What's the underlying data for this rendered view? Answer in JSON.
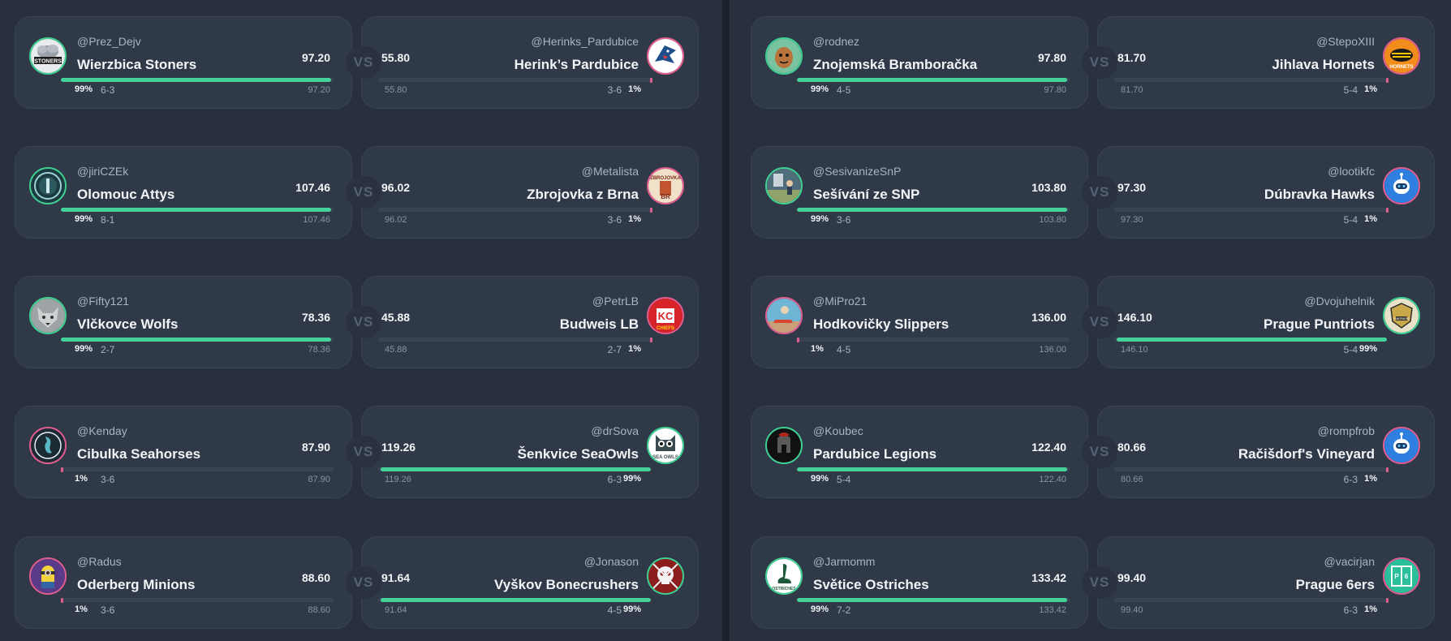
{
  "columns": [
    {
      "matchups": [
        {
          "home": {
            "handle": "@Prez_Dejv",
            "team": "Wierzbica Stoners",
            "score": "97.20",
            "pct": "99%",
            "record": "6-3",
            "mini": "97.20",
            "fill": 0.99,
            "winner": true,
            "avatar_icon": "stoners-logo-icon",
            "ring": "#3fd193"
          },
          "away": {
            "handle": "@Herinks_Pardubice",
            "team": "Herink’s Pardubice",
            "score": "55.80",
            "pct": "1%",
            "record": "3-6",
            "mini": "55.80",
            "fill": 0.01,
            "winner": false,
            "avatar_icon": "shark-logo-icon",
            "ring": "#e25d8f"
          }
        },
        {
          "home": {
            "handle": "@jiriCZEk",
            "team": "Olomouc Attys",
            "score": "107.46",
            "pct": "99%",
            "record": "8-1",
            "mini": "107.46",
            "fill": 0.99,
            "winner": true,
            "avatar_icon": "attys-badge-icon",
            "ring": "#3fd193"
          },
          "away": {
            "handle": "@Metalista",
            "team": "Zbrojovka z Brna",
            "score": "96.02",
            "pct": "1%",
            "record": "3-6",
            "mini": "96.02",
            "fill": 0.01,
            "winner": false,
            "avatar_icon": "zbrojovka-logo-icon",
            "ring": "#e25d8f"
          }
        },
        {
          "home": {
            "handle": "@Fifty121",
            "team": "Vlčkovce Wolfs",
            "score": "78.36",
            "pct": "99%",
            "record": "2-7",
            "mini": "78.36",
            "fill": 0.99,
            "winner": true,
            "avatar_icon": "wolf-icon",
            "ring": "#3fd193"
          },
          "away": {
            "handle": "@PetrLB",
            "team": "Budweis LB",
            "score": "45.88",
            "pct": "1%",
            "record": "2-7",
            "mini": "45.88",
            "fill": 0.01,
            "winner": false,
            "avatar_icon": "chiefs-logo-icon",
            "ring": "#e25d8f"
          }
        },
        {
          "home": {
            "handle": "@Kenday",
            "team": "Cibulka Seahorses",
            "score": "87.90",
            "pct": "1%",
            "record": "3-6",
            "mini": "87.90",
            "fill": 0.01,
            "winner": false,
            "avatar_icon": "seahorse-logo-icon",
            "ring": "#e25d8f"
          },
          "away": {
            "handle": "@drSova",
            "team": "Šenkvice SeaOwls",
            "score": "119.26",
            "pct": "99%",
            "record": "6-3",
            "mini": "119.26",
            "fill": 0.99,
            "winner": true,
            "avatar_icon": "owl-logo-icon",
            "ring": "#3fd193"
          }
        },
        {
          "home": {
            "handle": "@Radus",
            "team": "Oderberg Minions",
            "score": "88.60",
            "pct": "1%",
            "record": "3-6",
            "mini": "88.60",
            "fill": 0.01,
            "winner": false,
            "avatar_icon": "minion-icon",
            "ring": "#e25d8f"
          },
          "away": {
            "handle": "@Jonason",
            "team": "Vyškov Bonecrushers",
            "score": "91.64",
            "pct": "99%",
            "record": "4-5",
            "mini": "91.64",
            "fill": 0.99,
            "winner": true,
            "avatar_icon": "skull-logo-icon",
            "ring": "#3fd193"
          }
        }
      ]
    },
    {
      "matchups": [
        {
          "home": {
            "handle": "@rodnez",
            "team": "Znojemská Bramboračka",
            "score": "97.80",
            "pct": "99%",
            "record": "4-5",
            "mini": "97.80",
            "fill": 0.99,
            "winner": true,
            "avatar_icon": "potato-mascot-icon",
            "ring": "#3fd193"
          },
          "away": {
            "handle": "@StepoXIII",
            "team": "Jihlava Hornets",
            "score": "81.70",
            "pct": "1%",
            "record": "5-4",
            "mini": "81.70",
            "fill": 0.01,
            "winner": false,
            "avatar_icon": "hornets-logo-icon",
            "ring": "#e25d8f"
          }
        },
        {
          "home": {
            "handle": "@SesivanizeSnP",
            "team": "Sešívání ze SNP",
            "score": "103.80",
            "pct": "99%",
            "record": "3-6",
            "mini": "103.80",
            "fill": 0.99,
            "winner": true,
            "avatar_icon": "photo-avatar-icon",
            "ring": "#3fd193"
          },
          "away": {
            "handle": "@lootikfc",
            "team": "Dúbravka Hawks",
            "score": "97.30",
            "pct": "1%",
            "record": "5-4",
            "mini": "97.30",
            "fill": 0.01,
            "winner": false,
            "avatar_icon": "robot-avatar-icon",
            "ring": "#e25d8f"
          }
        },
        {
          "home": {
            "handle": "@MiPro21",
            "team": "Hodkovičky Slippers",
            "score": "136.00",
            "pct": "1%",
            "record": "4-5",
            "mini": "136.00",
            "fill": 0.01,
            "winner": false,
            "avatar_icon": "slipper-photo-icon",
            "ring": "#e25d8f"
          },
          "away": {
            "handle": "@Dvojuhelnik",
            "team": "Prague Puntriots",
            "score": "146.10",
            "pct": "99%",
            "record": "5-4",
            "mini": "146.10",
            "fill": 0.99,
            "winner": true,
            "avatar_icon": "puntriots-logo-icon",
            "ring": "#3fd193"
          }
        },
        {
          "home": {
            "handle": "@Koubec",
            "team": "Pardubice Legions",
            "score": "122.40",
            "pct": "99%",
            "record": "5-4",
            "mini": "122.40",
            "fill": 0.99,
            "winner": true,
            "avatar_icon": "spartan-helmet-icon",
            "ring": "#3fd193"
          },
          "away": {
            "handle": "@rompfrob",
            "team": "Račišdorf's Vineyard",
            "score": "80.66",
            "pct": "1%",
            "record": "6-3",
            "mini": "80.66",
            "fill": 0.01,
            "winner": false,
            "avatar_icon": "robot-avatar-icon",
            "ring": "#e25d8f"
          }
        },
        {
          "home": {
            "handle": "@Jarmomm",
            "team": "Světice Ostriches",
            "score": "133.42",
            "pct": "99%",
            "record": "7-2",
            "mini": "133.42",
            "fill": 0.99,
            "winner": true,
            "avatar_icon": "ostrich-logo-icon",
            "ring": "#3fd193"
          },
          "away": {
            "handle": "@vacirjan",
            "team": "Prague 6ers",
            "score": "99.40",
            "pct": "1%",
            "record": "6-3",
            "mini": "99.40",
            "fill": 0.01,
            "winner": false,
            "avatar_icon": "p6-logo-icon",
            "ring": "#e25d8f"
          }
        }
      ]
    }
  ],
  "vs_label": "VS",
  "avatar_text": {
    "stoners": "STONERS",
    "chiefs": "CHIEFS",
    "seaowls": "SEA OWLS",
    "hornets": "HORNETS",
    "ostriches": "OSTRICHES",
    "p6": "P6",
    "zbrojovka": "ZBROJOVKA",
    "puntriots": "PUNTRIOTS"
  },
  "colors": {
    "win": "#45d19a",
    "lose": "#e25d8f",
    "card": "#303948",
    "background": "#28303e"
  }
}
